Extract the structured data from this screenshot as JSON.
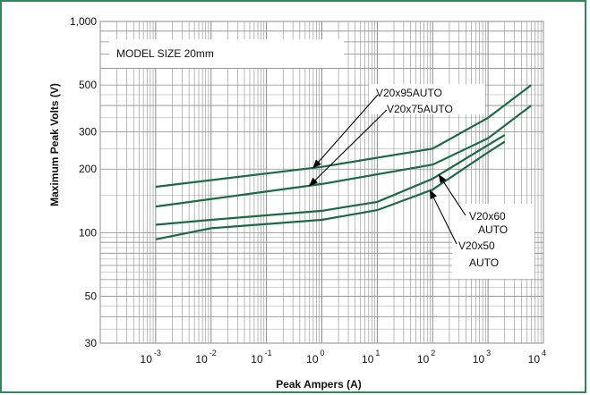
{
  "chart_data": {
    "type": "line",
    "title": "",
    "xlabel": "Peak Ampers (A)",
    "ylabel": "Maximum Peak Volts (V)",
    "x_scale": "log",
    "y_scale": "log",
    "xlim": [
      0.0001,
      10000
    ],
    "ylim": [
      30,
      1000
    ],
    "x_ticks": [
      {
        "base": "10",
        "exp": "-3",
        "value": 0.001
      },
      {
        "base": "10",
        "exp": "-2",
        "value": 0.01
      },
      {
        "base": "10",
        "exp": "-1",
        "value": 0.1
      },
      {
        "base": "10",
        "exp": "0",
        "value": 1
      },
      {
        "base": "10",
        "exp": "1",
        "value": 10
      },
      {
        "base": "10",
        "exp": "2",
        "value": 100
      },
      {
        "base": "10",
        "exp": "3",
        "value": 1000
      },
      {
        "base": "10",
        "exp": "4",
        "value": 10000
      }
    ],
    "y_ticks": [
      {
        "label": "1,000",
        "value": 1000
      },
      {
        "label": "500",
        "value": 500
      },
      {
        "label": "300",
        "value": 300
      },
      {
        "label": "200",
        "value": 200
      },
      {
        "label": "100",
        "value": 100
      },
      {
        "label": "50",
        "value": 50
      },
      {
        "label": "30",
        "value": 30
      }
    ],
    "grid": true,
    "line_color": "#1a6b45",
    "grid_color": "#8c8c8c",
    "model_label": "MODEL SIZE 20mm",
    "series": [
      {
        "name": "V20x95AUTO",
        "x": [
          0.001,
          1,
          100,
          1000,
          6000
        ],
        "y": [
          165,
          205,
          250,
          350,
          500
        ]
      },
      {
        "name": "V20x75AUTO",
        "x": [
          0.001,
          1,
          100,
          1000,
          6000
        ],
        "y": [
          133,
          170,
          210,
          280,
          400
        ]
      },
      {
        "name": "V20x60 AUTO",
        "x": [
          0.001,
          0.01,
          1,
          10,
          100,
          1000,
          2000
        ],
        "y": [
          109,
          115,
          127,
          140,
          180,
          260,
          290
        ]
      },
      {
        "name": "V20x50 AUTO",
        "x": [
          0.001,
          0.01,
          1,
          10,
          100,
          1000,
          2000
        ],
        "y": [
          93,
          105,
          115,
          128,
          160,
          240,
          270
        ]
      }
    ],
    "annotations": [
      {
        "text": "V20x95AUTO",
        "lines": [
          "V20x95AUTO"
        ],
        "series": 0,
        "at_x": 0.7
      },
      {
        "text": "V20x75AUTO",
        "lines": [
          "V20x75AUTO"
        ],
        "series": 1,
        "at_x": 0.6
      },
      {
        "text": "V20x60 AUTO",
        "lines": [
          "V20x60",
          "AUTO"
        ],
        "series": 2,
        "at_x": 130
      },
      {
        "text": "V20x50 AUTO",
        "lines": [
          "V20x50",
          "AUTO"
        ],
        "series": 3,
        "at_x": 90
      }
    ]
  }
}
